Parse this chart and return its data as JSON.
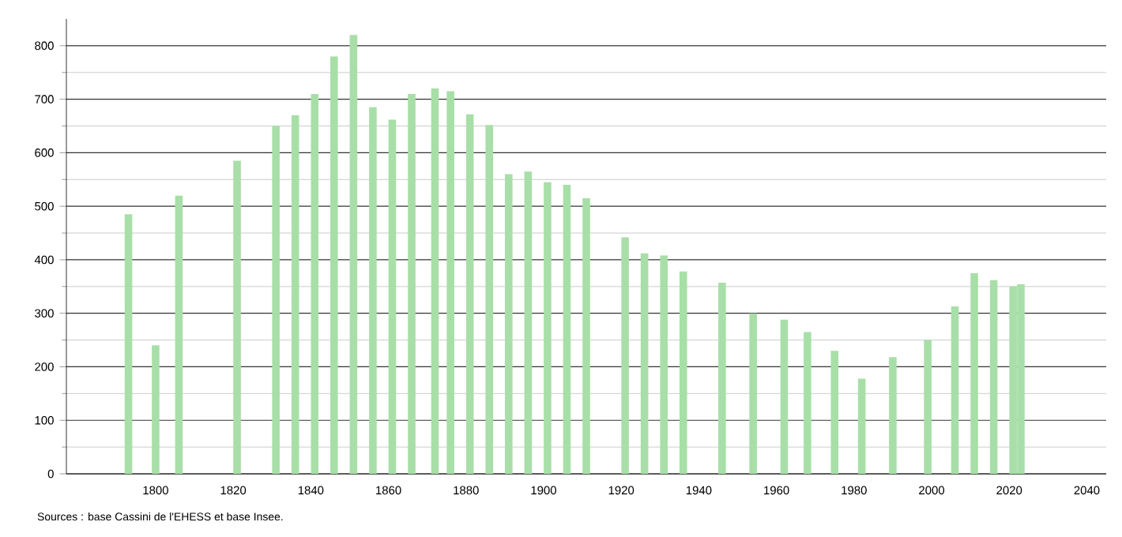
{
  "chart_data": {
    "type": "bar",
    "color": "#a8dfa8",
    "x": [
      1793,
      1800,
      1806,
      1821,
      1831,
      1836,
      1841,
      1846,
      1851,
      1856,
      1861,
      1866,
      1872,
      1876,
      1881,
      1886,
      1891,
      1896,
      1901,
      1906,
      1911,
      1921,
      1926,
      1931,
      1936,
      1946,
      1954,
      1962,
      1968,
      1975,
      1982,
      1990,
      1999,
      2006,
      2011,
      2016,
      2021,
      2023
    ],
    "values": [
      485,
      240,
      520,
      585,
      650,
      670,
      710,
      780,
      820,
      685,
      662,
      710,
      720,
      715,
      672,
      652,
      560,
      565,
      545,
      540,
      515,
      442,
      412,
      408,
      378,
      357,
      300,
      288,
      265,
      230,
      178,
      218,
      250,
      313,
      375,
      362,
      350,
      354
    ],
    "xlim": [
      1777,
      2045
    ],
    "ylim": [
      0,
      850
    ],
    "xticks": [
      1800,
      1820,
      1840,
      1860,
      1880,
      1900,
      1920,
      1940,
      1960,
      1980,
      2000,
      2020,
      2040
    ],
    "yticks": [
      0,
      100,
      200,
      300,
      400,
      500,
      600,
      700,
      800
    ],
    "grid": "y",
    "annotations": [
      "Sources : base Cassini de l'EHESS et base Insee."
    ]
  }
}
